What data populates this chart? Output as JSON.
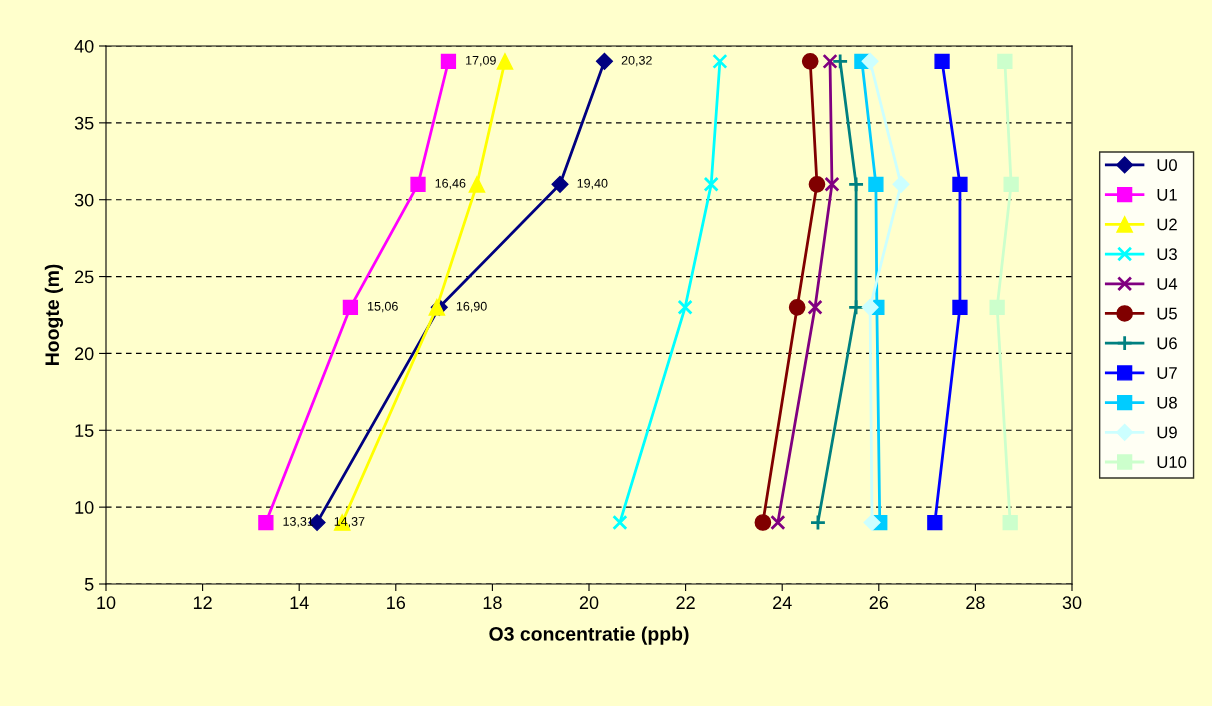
{
  "chart_data": {
    "type": "line",
    "orientation": "horizontal",
    "xlabel": "O3 concentratie (ppb)",
    "ylabel": "Hoogte (m)",
    "xlim": [
      10,
      30
    ],
    "xticks": [
      10,
      12,
      14,
      16,
      18,
      20,
      22,
      24,
      26,
      28,
      30
    ],
    "ylim": [
      5,
      40
    ],
    "yticks": [
      5,
      10,
      15,
      20,
      25,
      30,
      35,
      40
    ],
    "grid": "y",
    "legend": "right",
    "series": [
      {
        "name": "U0",
        "color": "#000080",
        "marker": "diamond",
        "x": [
          9,
          23,
          31,
          39
        ],
        "values": [
          14.37,
          16.9,
          19.4,
          20.32
        ],
        "value_labels": [
          "14,37",
          "16,90",
          "19,40",
          "20,32"
        ]
      },
      {
        "name": "U1",
        "color": "#ff00ff",
        "marker": "square",
        "x": [
          9,
          23,
          31,
          39
        ],
        "values": [
          13.31,
          15.06,
          16.46,
          17.09
        ],
        "value_labels": [
          "13,31",
          "15,06",
          "16,46",
          "17,09"
        ]
      },
      {
        "name": "U2",
        "color": "#ffff00",
        "marker": "triangle",
        "x": [
          9,
          23,
          31,
          39
        ],
        "values": [
          14.89,
          16.85,
          17.68,
          18.26
        ]
      },
      {
        "name": "U3",
        "color": "#00ffff",
        "marker": "cross",
        "x": [
          9,
          23,
          31,
          39
        ],
        "values": [
          20.64,
          21.99,
          22.53,
          22.71
        ]
      },
      {
        "name": "U4",
        "color": "#800080",
        "marker": "cross",
        "x": [
          9,
          23,
          31,
          39
        ],
        "values": [
          23.91,
          24.68,
          25.03,
          24.99
        ]
      },
      {
        "name": "U5",
        "color": "#800000",
        "marker": "circle",
        "x": [
          9,
          23,
          31,
          39
        ],
        "values": [
          23.6,
          24.31,
          24.72,
          24.58
        ]
      },
      {
        "name": "U6",
        "color": "#008080",
        "marker": "plus",
        "x": [
          9,
          23,
          31,
          39
        ],
        "values": [
          24.74,
          25.53,
          25.53,
          25.2
        ]
      },
      {
        "name": "U7",
        "color": "#0000ff",
        "marker": "square",
        "x": [
          9,
          23,
          31,
          39
        ],
        "values": [
          27.16,
          27.68,
          27.68,
          27.31
        ]
      },
      {
        "name": "U8",
        "color": "#00ccff",
        "marker": "square",
        "x": [
          9,
          23,
          31,
          39
        ],
        "values": [
          26.02,
          25.96,
          25.94,
          25.65
        ]
      },
      {
        "name": "U9",
        "color": "#ccffff",
        "marker": "diamond",
        "x": [
          9,
          23,
          31,
          39
        ],
        "values": [
          25.86,
          25.82,
          26.46,
          25.82
        ]
      },
      {
        "name": "U10",
        "color": "#ccffcc",
        "marker": "square",
        "x": [
          9,
          23,
          31,
          39
        ],
        "values": [
          28.72,
          28.45,
          28.74,
          28.61
        ]
      }
    ]
  }
}
